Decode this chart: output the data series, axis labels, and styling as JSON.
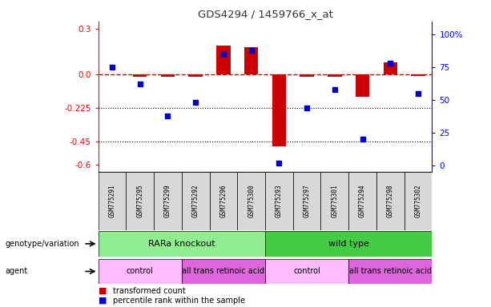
{
  "title": "GDS4294 / 1459766_x_at",
  "samples": [
    "GSM775291",
    "GSM775295",
    "GSM775299",
    "GSM775292",
    "GSM775296",
    "GSM775300",
    "GSM775293",
    "GSM775297",
    "GSM775301",
    "GSM775294",
    "GSM775298",
    "GSM775302"
  ],
  "red_values": [
    0.0,
    -0.02,
    -0.02,
    -0.02,
    0.19,
    0.18,
    -0.48,
    -0.02,
    -0.02,
    -0.15,
    0.08,
    -0.01
  ],
  "blue_values": [
    75,
    62,
    38,
    48,
    85,
    88,
    2,
    44,
    58,
    20,
    78,
    55
  ],
  "ylim_left": [
    -0.65,
    0.35
  ],
  "ylim_right": [
    -5,
    110
  ],
  "yticks_left": [
    0.3,
    0.0,
    -0.225,
    -0.45,
    -0.6
  ],
  "yticks_right": [
    100,
    75,
    50,
    25,
    0
  ],
  "hline_y": 0.0,
  "dotted_lines": [
    -0.225,
    -0.45
  ],
  "genotype_groups": [
    {
      "label": "RARa knockout",
      "start": 0,
      "end": 6,
      "color": "#90ee90"
    },
    {
      "label": "wild type",
      "start": 6,
      "end": 12,
      "color": "#44cc44"
    }
  ],
  "agent_groups": [
    {
      "label": "control",
      "start": 0,
      "end": 3,
      "color": "#ffbbff"
    },
    {
      "label": "all trans retinoic acid",
      "start": 3,
      "end": 6,
      "color": "#dd66dd"
    },
    {
      "label": "control",
      "start": 6,
      "end": 9,
      "color": "#ffbbff"
    },
    {
      "label": "all trans retinoic acid",
      "start": 9,
      "end": 12,
      "color": "#dd66dd"
    }
  ],
  "legend_red": "transformed count",
  "legend_blue": "percentile rank within the sample",
  "left_label": "genotype/variation",
  "agent_label": "agent",
  "bar_color": "#cc0000",
  "dot_color": "#0000cc",
  "hline_color": "#cc0000",
  "title_color": "#333333",
  "sample_bg": "#d8d8d8"
}
